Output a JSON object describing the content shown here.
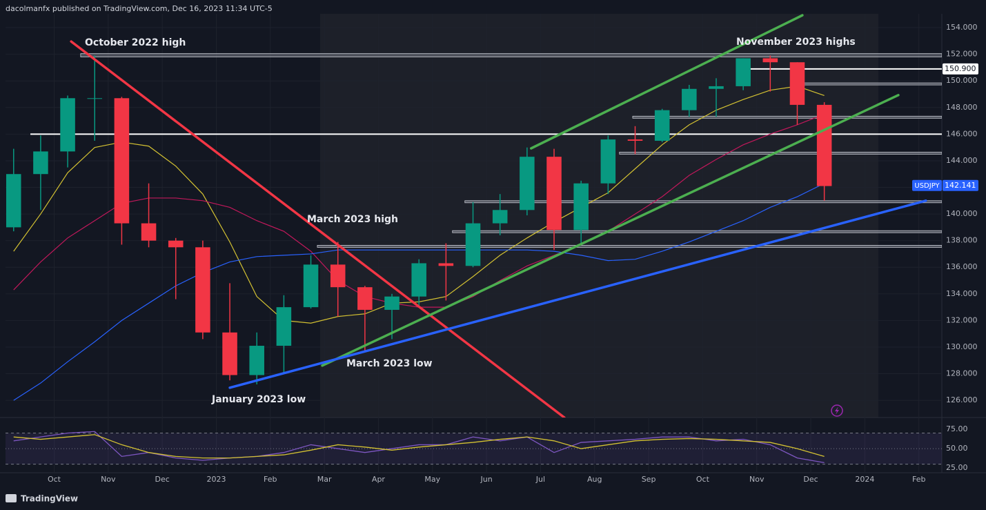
{
  "header": "dacolmanfx published on TradingView.com, Dec 16, 2023 11:34 UTC-5",
  "footer": "TradingView",
  "chart_data": [
    {
      "type": "candlestick",
      "annotations": [
        "October 2022 high",
        "November 2023 highs",
        "March 2023 high",
        "March 2023 low",
        "January 2023 low"
      ],
      "xlim": [
        0.2,
        34.85
      ],
      "ylim": [
        124.71,
        155.04
      ],
      "yticks": [
        {
          "value": 126,
          "label": "126.000"
        },
        {
          "value": 128,
          "label": "128.000"
        },
        {
          "value": 130,
          "label": "130.000"
        },
        {
          "value": 132,
          "label": "132.000"
        },
        {
          "value": 134,
          "label": "134.000"
        },
        {
          "value": 136,
          "label": "136.000"
        },
        {
          "value": 138,
          "label": "138.000"
        },
        {
          "value": 140,
          "label": "140.000"
        },
        {
          "value": 142,
          "label": "142.000"
        },
        {
          "value": 144,
          "label": "144.000"
        },
        {
          "value": 146,
          "label": "146.000"
        },
        {
          "value": 148,
          "label": "148.000"
        },
        {
          "value": 150,
          "label": "150.000"
        },
        {
          "value": 152,
          "label": "152.000"
        },
        {
          "value": 154,
          "label": "154.000"
        }
      ],
      "grid": true,
      "up_color": "#089981",
      "down_color": "#f23645",
      "candles": {
        "x": [
          0.5,
          1.5,
          2.5,
          3.5,
          4.5,
          5.5,
          6.5,
          7.5,
          8.5,
          9.5,
          10.5,
          11.5,
          12.5,
          13.5,
          14.5,
          15.5,
          16.5,
          17.5,
          18.5,
          19.5,
          20.5,
          21.5,
          22.5,
          23.5,
          24.5,
          25.5,
          26.5,
          27.5,
          28.5,
          29.5,
          30.5
        ],
        "open": [
          139.0,
          143.0,
          144.7,
          148.7,
          148.7,
          139.3,
          138.0,
          137.5,
          131.1,
          127.9,
          130.1,
          133.0,
          136.2,
          134.5,
          132.8,
          133.8,
          136.3,
          136.1,
          139.3,
          140.3,
          144.3,
          138.8,
          142.3,
          145.6,
          145.5,
          147.8,
          149.4,
          149.6,
          151.7,
          151.4,
          148.2
        ],
        "high": [
          144.9,
          145.9,
          148.9,
          151.9,
          148.8,
          142.3,
          138.2,
          138.0,
          134.8,
          131.1,
          133.9,
          136.9,
          137.9,
          134.6,
          134.0,
          136.6,
          137.8,
          140.9,
          141.5,
          145.0,
          144.9,
          142.5,
          145.9,
          146.6,
          147.9,
          149.7,
          150.2,
          151.7,
          151.9,
          151.4,
          148.4
        ],
        "low": [
          138.7,
          140.3,
          143.5,
          145.5,
          137.7,
          137.5,
          133.6,
          130.6,
          127.5,
          127.2,
          128.1,
          132.9,
          132.3,
          129.6,
          130.6,
          133.0,
          133.5,
          136.0,
          138.4,
          139.9,
          137.3,
          137.7,
          141.5,
          144.5,
          145.4,
          147.3,
          147.3,
          149.3,
          149.2,
          146.7,
          141.0
        ],
        "close": [
          143.0,
          144.7,
          148.7,
          148.7,
          139.3,
          138.0,
          137.5,
          131.1,
          127.9,
          130.1,
          133.0,
          136.2,
          134.5,
          132.8,
          133.8,
          136.3,
          136.1,
          139.3,
          140.3,
          144.3,
          138.8,
          142.3,
          145.6,
          145.5,
          147.8,
          149.4,
          149.6,
          151.7,
          151.4,
          148.2,
          142.1
        ]
      },
      "overlays": [
        {
          "color": "#d4c232",
          "values": [
            137.2,
            140,
            143.1,
            145,
            145.4,
            145.1,
            143.6,
            141.5,
            137.9,
            133.8,
            132,
            131.8,
            132.3,
            132.5,
            133.3,
            133.4,
            133.8,
            135.3,
            136.9,
            138.2,
            139.4,
            140.5,
            141.6,
            143.4,
            145.2,
            146.7,
            147.8,
            148.6,
            149.3,
            149.6,
            148.9
          ]
        },
        {
          "color": "#c2185b",
          "values": [
            134.3,
            136.4,
            138.2,
            139.5,
            140.8,
            141.2,
            141.2,
            141.0,
            140.5,
            139.5,
            138.7,
            137.2,
            135.0,
            133.8,
            133.3,
            133.0,
            133.0,
            133.8,
            135.0,
            136.1,
            136.9,
            137.7,
            138.7,
            140.0,
            141.3,
            142.9,
            144.1,
            145.2,
            146.0,
            146.7,
            147.5
          ]
        },
        {
          "color": "#2962ff",
          "values": [
            126.0,
            127.3,
            128.9,
            130.4,
            132.0,
            133.3,
            134.6,
            135.6,
            136.4,
            136.8,
            136.9,
            137.0,
            137.3,
            137.3,
            137.3,
            137.3,
            137.3,
            137.3,
            137.3,
            137.3,
            137.2,
            136.9,
            136.5,
            136.6,
            137.2,
            137.9,
            138.7,
            139.5,
            140.5,
            141.3,
            142.3
          ]
        }
      ],
      "levels": [
        {
          "from": 2.98,
          "low": 151.8,
          "high": 152.05,
          "color": "#787b86"
        },
        {
          "from": 1.12,
          "price": 146.0,
          "color": "#ffffff"
        },
        {
          "from": 27.31,
          "price": 150.9,
          "color": "#ffffff",
          "label": "150.900"
        },
        {
          "from": 29.3,
          "low": 149.7,
          "high": 149.85,
          "color": "#787b86"
        },
        {
          "from": 23.41,
          "low": 147.2,
          "high": 147.35,
          "color": "#787b86"
        },
        {
          "from": 22.92,
          "low": 144.5,
          "high": 144.65,
          "color": "#787b86"
        },
        {
          "from": 17.2,
          "low": 140.85,
          "high": 141.0,
          "color": "#787b86"
        },
        {
          "from": 16.74,
          "low": 138.6,
          "high": 138.75,
          "color": "#787b86"
        },
        {
          "from": 11.74,
          "low": 137.5,
          "high": 137.65,
          "color": "#787b86"
        }
      ],
      "trendlines": [
        {
          "color": "#f23645",
          "points": [
            [
              2.63,
              152.96
            ],
            [
              20.88,
              124.71
            ]
          ]
        },
        {
          "color": "#4caf50",
          "points": [
            [
              19.65,
              144.93
            ],
            [
              29.69,
              154.93
            ]
          ]
        },
        {
          "color": "#4caf50",
          "points": [
            [
              11.92,
              128.61
            ],
            [
              33.24,
              148.93
            ]
          ]
        },
        {
          "color": "#2962ff",
          "points": [
            [
              8.5,
              126.95
            ],
            [
              34.26,
              141.0
            ]
          ]
        }
      ],
      "last_price": {
        "symbol": "USDJPY",
        "value": 142.141,
        "label": "142.141",
        "color": "#2962ff"
      }
    },
    {
      "type": "line",
      "xlim": [
        0.2,
        34.85
      ],
      "ylim": [
        19,
        90
      ],
      "yticks": [
        {
          "value": 25,
          "label": "25.00"
        },
        {
          "value": 50,
          "label": "50.00"
        },
        {
          "value": 75,
          "label": "75.00"
        }
      ],
      "xticks": [
        {
          "value": 2,
          "label": "Oct"
        },
        {
          "value": 4,
          "label": "Nov"
        },
        {
          "value": 6,
          "label": "Dec"
        },
        {
          "value": 8,
          "label": "2023"
        },
        {
          "value": 10,
          "label": "Feb"
        },
        {
          "value": 12,
          "label": "Mar"
        },
        {
          "value": 14,
          "label": "Apr"
        },
        {
          "value": 16,
          "label": "May"
        },
        {
          "value": 18,
          "label": "Jun"
        },
        {
          "value": 20,
          "label": "Jul"
        },
        {
          "value": 22,
          "label": "Aug"
        },
        {
          "value": 24,
          "label": "Sep"
        },
        {
          "value": 26,
          "label": "Oct"
        },
        {
          "value": 28,
          "label": "Nov"
        },
        {
          "value": 30,
          "label": "Dec"
        },
        {
          "value": 32,
          "label": "2024"
        },
        {
          "value": 34,
          "label": "Feb"
        }
      ],
      "bands": [
        30,
        70
      ],
      "band_color": "#7e57c2",
      "midline": 50,
      "x": [
        0.5,
        1.5,
        2.5,
        3.5,
        4.5,
        5.5,
        6.5,
        7.5,
        8.5,
        9.5,
        10.5,
        11.5,
        12.5,
        13.5,
        14.5,
        15.5,
        16.5,
        17.5,
        18.5,
        19.5,
        20.5,
        21.5,
        22.5,
        23.5,
        24.5,
        25.5,
        26.5,
        27.5,
        28.5,
        29.5,
        30.5
      ],
      "series": [
        {
          "color": "#7e57c2",
          "values": [
            60,
            65,
            70,
            72,
            40,
            45,
            38,
            35,
            38,
            40,
            45,
            55,
            50,
            45,
            50,
            55,
            55,
            65,
            60,
            65,
            45,
            58,
            60,
            62,
            65,
            65,
            60,
            62,
            55,
            38,
            32
          ]
        },
        {
          "color": "#d4c232",
          "values": [
            65,
            62,
            65,
            68,
            55,
            45,
            40,
            38,
            38,
            40,
            42,
            48,
            55,
            52,
            48,
            52,
            55,
            58,
            62,
            65,
            60,
            50,
            55,
            60,
            62,
            63,
            62,
            60,
            58,
            50,
            40
          ]
        }
      ]
    }
  ]
}
